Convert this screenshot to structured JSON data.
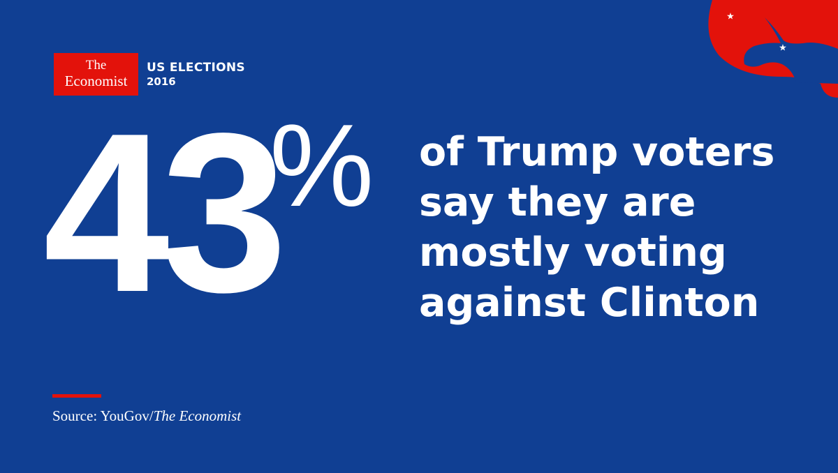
{
  "logo": {
    "line1": "The",
    "line2": "Economist"
  },
  "section": {
    "title": "US ELECTIONS",
    "year": "2016"
  },
  "stat": {
    "value": 43,
    "unit": "%"
  },
  "statement": [
    "of Trump voters",
    "say they are",
    "mostly voting",
    "against Clinton"
  ],
  "source": {
    "prefix": "Source: YouGov/",
    "publication": "The Economist"
  }
}
